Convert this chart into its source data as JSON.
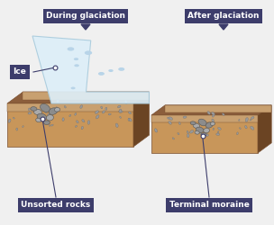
{
  "bg_color": "#f0f0f0",
  "label_bg": "#3d3d6b",
  "label_text_color": "#ffffff",
  "labels": {
    "during_glaciation": "During glaciation",
    "after_glaciation": "After glaciation",
    "ice": "Ice",
    "unsorted_rocks": "Unsorted rocks",
    "terminal_moraine": "Terminal moraine"
  },
  "ground_top_color": "#8B5E3C",
  "ground_front_color": "#C8965A",
  "ground_side_color": "#6B4423",
  "ground_sandy_color": "#c8a070",
  "ground_line_color": "#7a5030",
  "ice_fill": "#ddeef8",
  "ice_edge": "#aaccdd",
  "ice_spot": "#b8d4e8",
  "rock_fill": "#8c8c8c",
  "rock_edge": "#555555",
  "rock_light": "#aaaaaa",
  "line_color": "#3d3d6b",
  "dot_color": "#ffffff",
  "small_rock_fill": "#999999",
  "font_size": 6.5,
  "font_weight": "bold"
}
